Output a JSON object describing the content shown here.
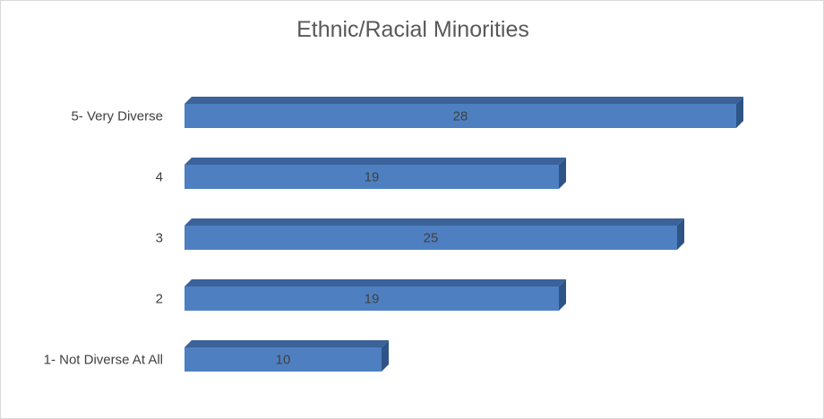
{
  "chart_data": {
    "type": "bar",
    "orientation": "horizontal",
    "three_d": true,
    "title": "Ethnic/Racial Minorities",
    "categories": [
      "5- Very Diverse",
      "4",
      "3",
      "2",
      "1- Not Diverse At All"
    ],
    "values": [
      28,
      19,
      25,
      19,
      10
    ],
    "data_labels": true,
    "grid": false,
    "legend": "none",
    "colors": {
      "bar_front": "#4e80c1",
      "bar_top": "#3b629a",
      "bar_side": "#2e5487",
      "text": "#404040",
      "title": "#595959"
    }
  }
}
